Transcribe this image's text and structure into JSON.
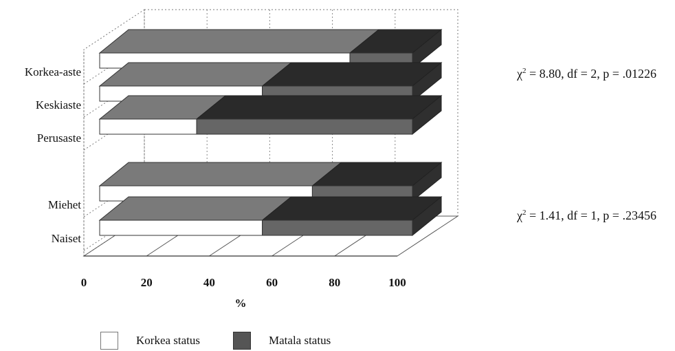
{
  "chart_data": {
    "type": "bar",
    "orientation": "horizontal",
    "stacked": true,
    "three_d": true,
    "categories": [
      "Korkea-aste",
      "Keskiaste",
      "Perusaste",
      "Miehet",
      "Naiset"
    ],
    "series": [
      {
        "name": "Korkea status",
        "color": "#ffffff",
        "values": [
          80,
          52,
          31,
          68,
          52
        ]
      },
      {
        "name": "Matala status",
        "color": "#5a5a5a",
        "values": [
          20,
          48,
          69,
          32,
          48
        ]
      }
    ],
    "xlabel": "%",
    "xlim": [
      0,
      100
    ],
    "xticks": [
      "0",
      "20",
      "40",
      "60",
      "80",
      "100"
    ],
    "grid": true,
    "legend_position": "bottom"
  },
  "annotations": {
    "education": {
      "chi": "χ",
      "sup": "2",
      "text": " = 8.80, df = 2, p = .01226"
    },
    "gender": {
      "chi": "χ",
      "sup": "2",
      "text": " = 1.41, df = 1, p = .23456"
    }
  },
  "legend": {
    "items": [
      {
        "label": "Korkea status",
        "style": "light"
      },
      {
        "label": "Matala status",
        "style": "dark"
      }
    ]
  }
}
